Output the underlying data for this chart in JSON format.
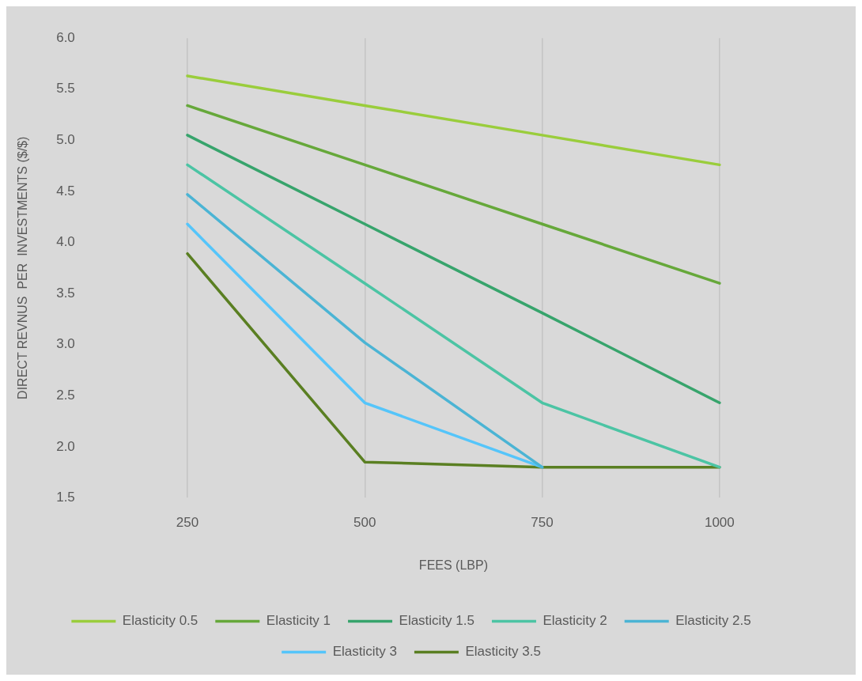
{
  "chart_data": {
    "type": "line",
    "xlabel": "FEES (LBP)",
    "ylabel": "DIRECT REVNUS  PER  INVESTMENTS ($/$)",
    "categories": [
      "250",
      "500",
      "750",
      "1000"
    ],
    "ylim": [
      1.5,
      6.0
    ],
    "yticks": [
      {
        "value": 1.5,
        "label": "1.5"
      },
      {
        "value": 2,
        "label": "2.0"
      },
      {
        "value": 2.5,
        "label": "2.5"
      },
      {
        "value": 3,
        "label": "3.0"
      },
      {
        "value": 3.5,
        "label": "3.5"
      },
      {
        "value": 4,
        "label": "4.0"
      },
      {
        "value": 4.5,
        "label": "4.5"
      },
      {
        "value": 5,
        "label": "5.0"
      },
      {
        "value": 5.5,
        "label": "5.5"
      },
      {
        "value": 6,
        "label": "6.0"
      }
    ],
    "grid": "x",
    "legend": "bottom",
    "marker": "none",
    "line_style": "solid",
    "series": [
      {
        "name": "Elasticity 0.5",
        "color": "#9acd3c",
        "values": [
          5.63,
          5.34,
          5.05,
          4.76
        ]
      },
      {
        "name": "Elasticity 1",
        "color": "#66a83a",
        "values": [
          5.34,
          4.76,
          4.18,
          3.6
        ]
      },
      {
        "name": "Elasticity 1.5",
        "color": "#37a46c",
        "values": [
          5.05,
          4.18,
          3.31,
          2.43
        ]
      },
      {
        "name": "Elasticity 2",
        "color": "#4cc4a4",
        "values": [
          4.76,
          3.6,
          2.43,
          1.8
        ]
      },
      {
        "name": "Elasticity 2.5",
        "color": "#4bb4d4",
        "values": [
          4.47,
          3.02,
          1.8,
          null
        ]
      },
      {
        "name": "Elasticity 3",
        "color": "#55c5fa",
        "values": [
          4.18,
          2.43,
          1.8,
          null
        ]
      },
      {
        "name": "Elasticity 3.5",
        "color": "#5a7f22",
        "values": [
          3.89,
          1.85,
          1.8,
          1.8
        ]
      }
    ]
  }
}
